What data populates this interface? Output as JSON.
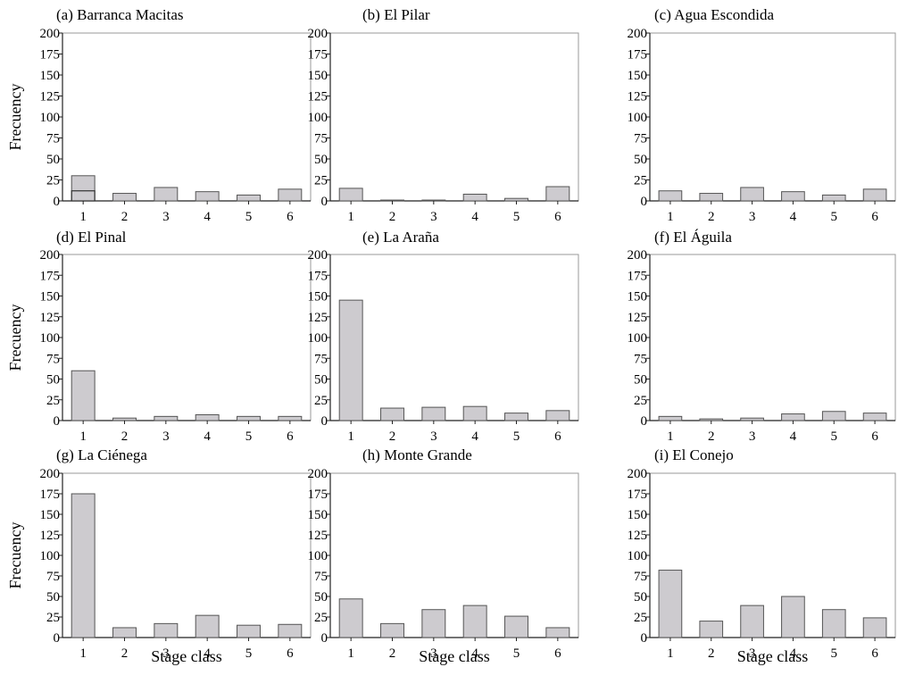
{
  "figure": {
    "ylabel": "Frecuency",
    "xlabel": "Stage class"
  },
  "chart_data": [
    {
      "type": "bar",
      "title": "(a) Barranca Macitas",
      "categories": [
        "1",
        "2",
        "3",
        "4",
        "5",
        "6"
      ],
      "values": [
        30,
        9,
        16,
        11,
        7,
        14
      ],
      "overlay_values": [
        12,
        null,
        null,
        null,
        null,
        null
      ],
      "ylim": [
        0,
        200
      ],
      "yticks": [
        "0",
        "25",
        "50",
        "75",
        "100",
        "125",
        "150",
        "175",
        "200"
      ],
      "ylabel": "Frecuency",
      "xlabel": ""
    },
    {
      "type": "bar",
      "title": "(b) El Pilar",
      "categories": [
        "1",
        "2",
        "3",
        "4",
        "5",
        "6"
      ],
      "values": [
        15,
        1,
        1,
        8,
        3,
        17
      ],
      "ylim": [
        0,
        200
      ],
      "yticks": [
        "0",
        "25",
        "50",
        "75",
        "100",
        "125",
        "150",
        "175",
        "200"
      ],
      "ylabel": "",
      "xlabel": ""
    },
    {
      "type": "bar",
      "title": "(c) Agua Escondida",
      "categories": [
        "1",
        "2",
        "3",
        "4",
        "5",
        "6"
      ],
      "values": [
        12,
        9,
        16,
        11,
        7,
        14
      ],
      "ylim": [
        0,
        200
      ],
      "yticks": [
        "0",
        "25",
        "50",
        "75",
        "100",
        "125",
        "150",
        "175",
        "200"
      ],
      "ylabel": "",
      "xlabel": ""
    },
    {
      "type": "bar",
      "title": "(d) El Pinal",
      "categories": [
        "1",
        "2",
        "3",
        "4",
        "5",
        "6"
      ],
      "values": [
        60,
        3,
        5,
        7,
        5,
        5
      ],
      "ylim": [
        0,
        200
      ],
      "yticks": [
        "0",
        "25",
        "50",
        "75",
        "100",
        "125",
        "150",
        "175",
        "200"
      ],
      "ylabel": "Frecuency",
      "xlabel": ""
    },
    {
      "type": "bar",
      "title": "(e) La Araña",
      "categories": [
        "1",
        "2",
        "3",
        "4",
        "5",
        "6"
      ],
      "values": [
        145,
        15,
        16,
        17,
        9,
        12
      ],
      "ylim": [
        0,
        200
      ],
      "yticks": [
        "0",
        "25",
        "50",
        "75",
        "100",
        "125",
        "150",
        "175",
        "200"
      ],
      "ylabel": "",
      "xlabel": ""
    },
    {
      "type": "bar",
      "title": "(f) El Águila",
      "categories": [
        "1",
        "2",
        "3",
        "4",
        "5",
        "6"
      ],
      "values": [
        5,
        2,
        3,
        8,
        11,
        9
      ],
      "ylim": [
        0,
        200
      ],
      "yticks": [
        "0",
        "25",
        "50",
        "75",
        "100",
        "125",
        "150",
        "175",
        "200"
      ],
      "ylabel": "",
      "xlabel": ""
    },
    {
      "type": "bar",
      "title": "(g) La Ciénega",
      "categories": [
        "1",
        "2",
        "3",
        "4",
        "5",
        "6"
      ],
      "values": [
        175,
        12,
        17,
        27,
        15,
        16
      ],
      "ylim": [
        0,
        200
      ],
      "yticks": [
        "0",
        "25",
        "50",
        "75",
        "100",
        "125",
        "150",
        "175",
        "200"
      ],
      "ylabel": "Frecuency",
      "xlabel": "Stage class"
    },
    {
      "type": "bar",
      "title": "(h) Monte Grande",
      "categories": [
        "1",
        "2",
        "3",
        "4",
        "5",
        "6"
      ],
      "values": [
        47,
        17,
        34,
        39,
        26,
        12
      ],
      "ylim": [
        0,
        200
      ],
      "yticks": [
        "0",
        "25",
        "50",
        "75",
        "100",
        "125",
        "150",
        "175",
        "200"
      ],
      "ylabel": "",
      "xlabel": "Stage class"
    },
    {
      "type": "bar",
      "title": "(i) El Conejo",
      "categories": [
        "1",
        "2",
        "3",
        "4",
        "5",
        "6"
      ],
      "values": [
        82,
        20,
        39,
        50,
        34,
        24
      ],
      "ylim": [
        0,
        200
      ],
      "yticks": [
        "0",
        "25",
        "50",
        "75",
        "100",
        "125",
        "150",
        "175",
        "200"
      ],
      "ylabel": "",
      "xlabel": "Stage class"
    }
  ],
  "colors": {
    "bar_fill": "#cdcbcf",
    "bar_stroke": "#555555",
    "frame": "#999999",
    "axis": "#222222"
  }
}
